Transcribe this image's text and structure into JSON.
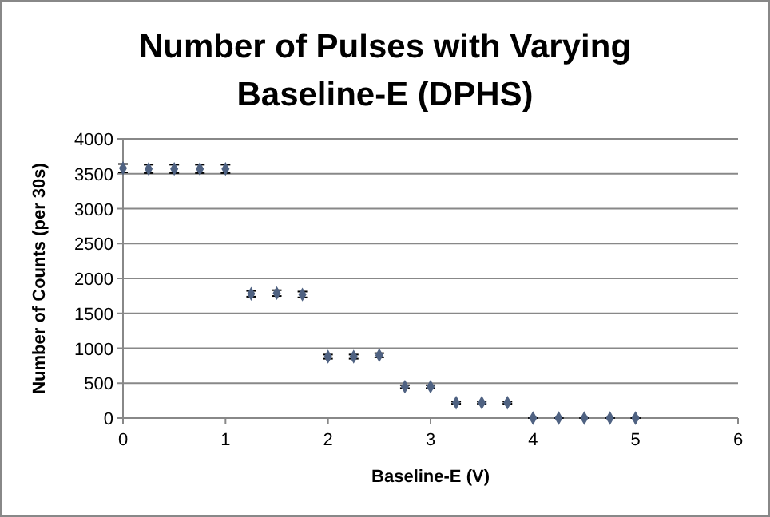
{
  "chart_data": {
    "type": "scatter",
    "title": "Number of Pulses with Varying Baseline-E (DPHS)",
    "xlabel": "Baseline-E (V)",
    "ylabel": "Number of Counts (per 30s)",
    "x": [
      0,
      0.25,
      0.5,
      0.75,
      1,
      1.25,
      1.5,
      1.75,
      2,
      2.25,
      2.5,
      2.75,
      3,
      3.25,
      3.5,
      3.75,
      4,
      4.25,
      4.5,
      4.75,
      5
    ],
    "series": [
      {
        "color": "#4f6282",
        "values": [
          3580,
          3570,
          3570,
          3570,
          3570,
          1780,
          1790,
          1770,
          880,
          880,
          900,
          450,
          450,
          220,
          220,
          220,
          0,
          0,
          0,
          0,
          0
        ],
        "errors": [
          60,
          60,
          60,
          60,
          60,
          42,
          42,
          42,
          30,
          30,
          30,
          21,
          21,
          15,
          15,
          15,
          0,
          0,
          0,
          0,
          0
        ]
      }
    ],
    "xlim": [
      0,
      6
    ],
    "xticks": [
      0,
      1,
      2,
      3,
      4,
      5,
      6
    ],
    "ylim": [
      0,
      4000
    ],
    "yticks": [
      0,
      500,
      1000,
      1500,
      2000,
      2500,
      3000,
      3500,
      4000
    ],
    "grid": "y",
    "marker": "diamond"
  }
}
